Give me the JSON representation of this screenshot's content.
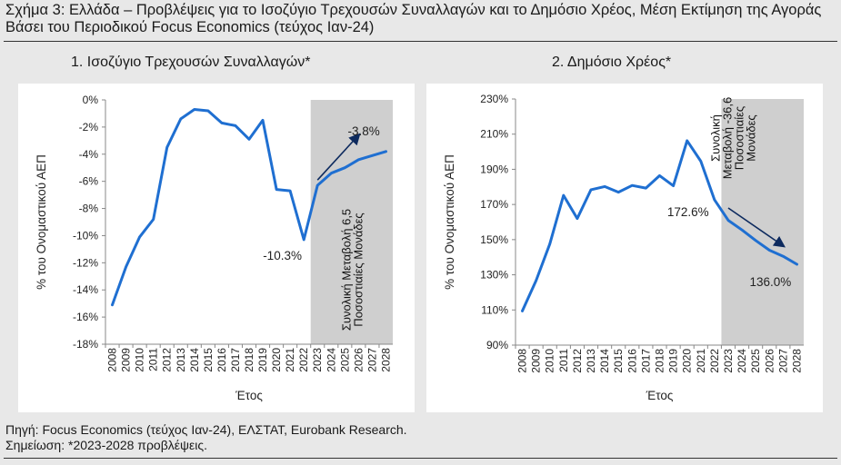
{
  "figure_title": "Σχήμα 3: Ελλάδα – Προβλέψεις για το Ισοζύγιο Τρεχουσών Συναλλαγών και το Δημόσιο Χρέος, Μέση Εκτίμηση της Αγοράς Βάσει του Περιοδικού Focus Economics (τεύχος Ιαν-24)",
  "footer": {
    "source": "Πηγή: Focus Economics (τεύχος Ιαν-24), ΕΛΣΤΑΤ, Eurobank Research.",
    "note": "Σημείωση: *2023-2028 προβλέψεις."
  },
  "colors": {
    "line": "#1f6fd1",
    "arrow": "#0d2a5e",
    "forecast_bg": "#cfcfcf"
  },
  "chart_data": [
    {
      "type": "line",
      "title": "1. Ισοζύγιο Τρεχουσών Συναλλαγών*",
      "xlabel": "Έτος",
      "ylabel": "% του Ονομαστικού ΑΕΠ",
      "x": [
        "2008",
        "2009",
        "2010",
        "2011",
        "2012",
        "2013",
        "2014",
        "2015",
        "2016",
        "2017",
        "2018",
        "2019",
        "2020",
        "2021",
        "2022",
        "2023",
        "2024",
        "2025",
        "2026",
        "2027",
        "2028"
      ],
      "series": [
        {
          "name": "Ισοζύγιο Τρεχουσών Συναλλαγών",
          "values": [
            -15.1,
            -12.3,
            -10.1,
            -8.8,
            -3.5,
            -1.4,
            -0.7,
            -0.8,
            -1.7,
            -1.9,
            -2.9,
            -1.5,
            -6.6,
            -6.7,
            -10.3,
            -6.3,
            -5.4,
            -5.0,
            -4.4,
            -4.1,
            -3.8
          ]
        }
      ],
      "ylim": [
        -18,
        0
      ],
      "yticks": [
        0,
        -2,
        -4,
        -6,
        -8,
        -10,
        -12,
        -14,
        -16,
        -18
      ],
      "ytick_labels": [
        "0%",
        "-2%",
        "-4%",
        "-6%",
        "-8%",
        "-10%",
        "-12%",
        "-14%",
        "-16%",
        "-18%"
      ],
      "forecast_start": "2023",
      "forecast_end": "2028",
      "data_labels": [
        {
          "x": "2022",
          "text": "-10.3%"
        },
        {
          "x": "2028",
          "text": "-3.8%"
        }
      ],
      "annotation": [
        "Συνολική Μεταβολή 6,5",
        "Ποσοστιαίες Μονάδες"
      ],
      "arrow": {
        "from_x": "2023",
        "from_y": -5.9,
        "to_x": "2026",
        "to_y": -2.6
      }
    },
    {
      "type": "line",
      "title": "2. Δημόσιο Χρέος*",
      "xlabel": "Έτος",
      "ylabel": "% του Ονομαστικού ΑΕΠ",
      "x": [
        "2008",
        "2009",
        "2010",
        "2011",
        "2012",
        "2013",
        "2014",
        "2015",
        "2016",
        "2017",
        "2018",
        "2019",
        "2020",
        "2021",
        "2022",
        "2023",
        "2024",
        "2025",
        "2026",
        "2027",
        "2028"
      ],
      "series": [
        {
          "name": "Δημόσιο Χρέος",
          "values": [
            109.4,
            126.7,
            147.5,
            175.2,
            162.0,
            178.4,
            180.2,
            177.0,
            180.8,
            179.3,
            186.4,
            180.6,
            206.3,
            194.6,
            172.6,
            161.0,
            155.5,
            149.5,
            144.0,
            140.5,
            136.0
          ]
        }
      ],
      "ylim": [
        90,
        230
      ],
      "yticks": [
        230,
        210,
        190,
        170,
        150,
        130,
        110,
        90
      ],
      "ytick_labels": [
        "230%",
        "210%",
        "190%",
        "170%",
        "150%",
        "130%",
        "110%",
        "90%"
      ],
      "forecast_start": "2023",
      "forecast_end": "2028",
      "data_labels": [
        {
          "x": "2022",
          "text": "172.6%"
        },
        {
          "x": "2028",
          "text": "136.0%"
        }
      ],
      "annotation": [
        "Συνολική",
        "Μεταβολή -36,6",
        "Ποσοστιαίες",
        "Μονάδες"
      ],
      "arrow": {
        "from_x": "2023",
        "from_y": 168.0,
        "to_x": "2027",
        "to_y": 146.5
      }
    }
  ]
}
